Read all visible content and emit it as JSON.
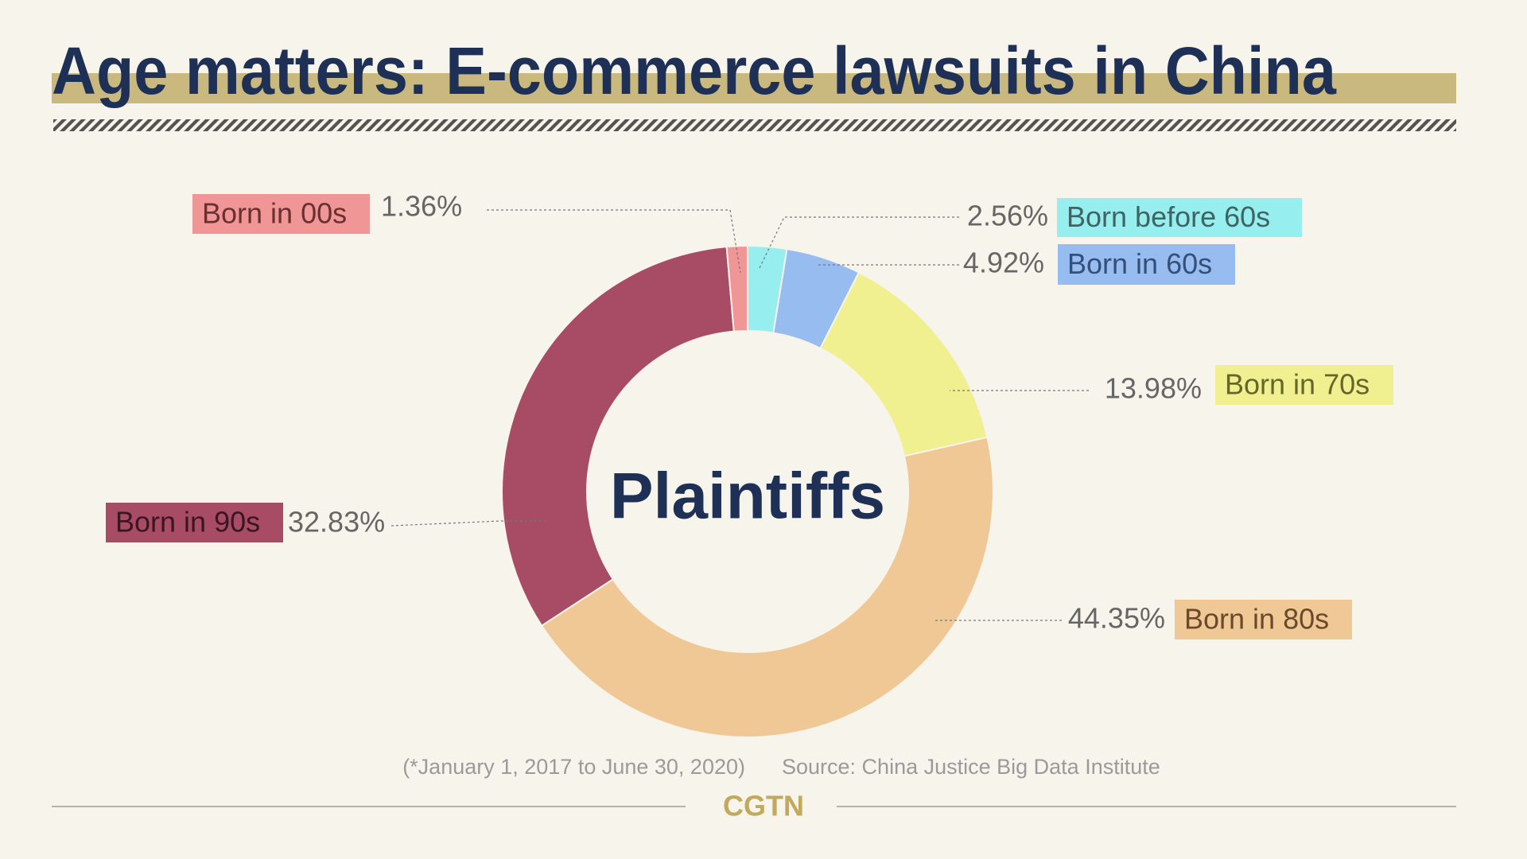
{
  "chart_data": {
    "type": "pie",
    "donut": true,
    "title": "Age matters: E-commerce lawsuits in China",
    "center_label": "Plaintiffs",
    "categories": [
      "Born before 60s",
      "Born in 60s",
      "Born in 70s",
      "Born in 80s",
      "Born in 90s",
      "Born in 00s"
    ],
    "values": [
      2.56,
      4.92,
      13.98,
      44.35,
      32.83,
      1.36
    ],
    "value_labels": [
      "2.56%",
      "4.92%",
      "13.98%",
      "44.35%",
      "32.83%",
      "1.36%"
    ],
    "colors": [
      "#96eeee",
      "#96bcf0",
      "#f0f090",
      "#f0c896",
      "#a84c66",
      "#f09696"
    ],
    "note": "(*January 1, 2017 to June 30, 2020)",
    "source": "Source: China Justice Big Data Institute"
  },
  "logo": "CGTN"
}
